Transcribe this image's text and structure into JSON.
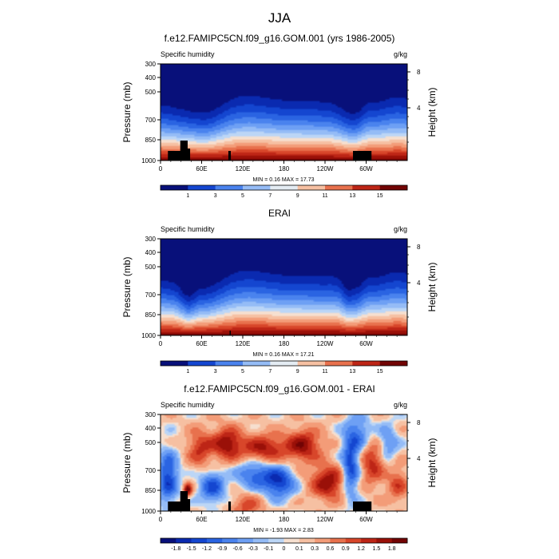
{
  "figure": {
    "title": "JJA"
  },
  "chart_data": [
    {
      "type": "heatmap",
      "title": "f.e12.FAMIPC5CN.f09_g16.GOM.001 (yrs 1986-2005)",
      "variable_label": "Specific humidity",
      "units_label": "g/kg",
      "ylabel": "Pressure (mb)",
      "y2label": "Height (km)",
      "yticks": [
        "300",
        "400",
        "500",
        "700",
        "850",
        "1000"
      ],
      "y2ticks": [
        "8",
        "4"
      ],
      "xticks": [
        "0",
        "60E",
        "120E",
        "180",
        "120W",
        "60W"
      ],
      "stats": "MIN =   0.16  MAX =   17.73",
      "colorbar_labels": [
        "1",
        "3",
        "5",
        "7",
        "9",
        "11",
        "13",
        "15"
      ],
      "min": 0.16,
      "max": 17.73
    },
    {
      "type": "heatmap",
      "title": "ERAI",
      "variable_label": "Specific humidity",
      "units_label": "g/kg",
      "ylabel": "Pressure (mb)",
      "y2label": "Height (km)",
      "yticks": [
        "300",
        "400",
        "500",
        "700",
        "850",
        "1000"
      ],
      "y2ticks": [
        "8",
        "4"
      ],
      "xticks": [
        "0",
        "60E",
        "120E",
        "180",
        "120W",
        "60W"
      ],
      "stats": "MIN =   0.16  MAX =   17.21",
      "colorbar_labels": [
        "1",
        "3",
        "5",
        "7",
        "9",
        "11",
        "13",
        "15"
      ],
      "min": 0.16,
      "max": 17.21
    },
    {
      "type": "heatmap",
      "title": "f.e12.FAMIPC5CN.f09_g16.GOM.001 - ERAI",
      "variable_label": "Specific humidity",
      "units_label": "g/kg",
      "ylabel": "Pressure (mb)",
      "y2label": "Height (km)",
      "yticks": [
        "300",
        "400",
        "500",
        "700",
        "850",
        "1000"
      ],
      "y2ticks": [
        "8",
        "4"
      ],
      "xticks": [
        "0",
        "60E",
        "120E",
        "180",
        "120W",
        "60W"
      ],
      "stats": "MIN =  -1.93  MAX =   2.83",
      "colorbar_labels": [
        "-1.8",
        "-1.5",
        "-1.2",
        "-0.9",
        "-0.6",
        "-0.3",
        "-0.1",
        "0",
        "0.1",
        "0.3",
        "0.6",
        "0.9",
        "1.2",
        "1.5",
        "1.8"
      ],
      "min": -1.93,
      "max": 2.83
    }
  ],
  "colors": {
    "palette": [
      "#08107a",
      "#0a2ab0",
      "#1446d0",
      "#2a64e2",
      "#4a83ee",
      "#6ea0f4",
      "#95bcf6",
      "#bcd6f6",
      "#e4ecf3",
      "#f6dfcf",
      "#f6c0a2",
      "#f39c78",
      "#e8714d",
      "#d8462a",
      "#bd2516",
      "#9a1008",
      "#720404"
    ],
    "terrain": "#000000"
  }
}
